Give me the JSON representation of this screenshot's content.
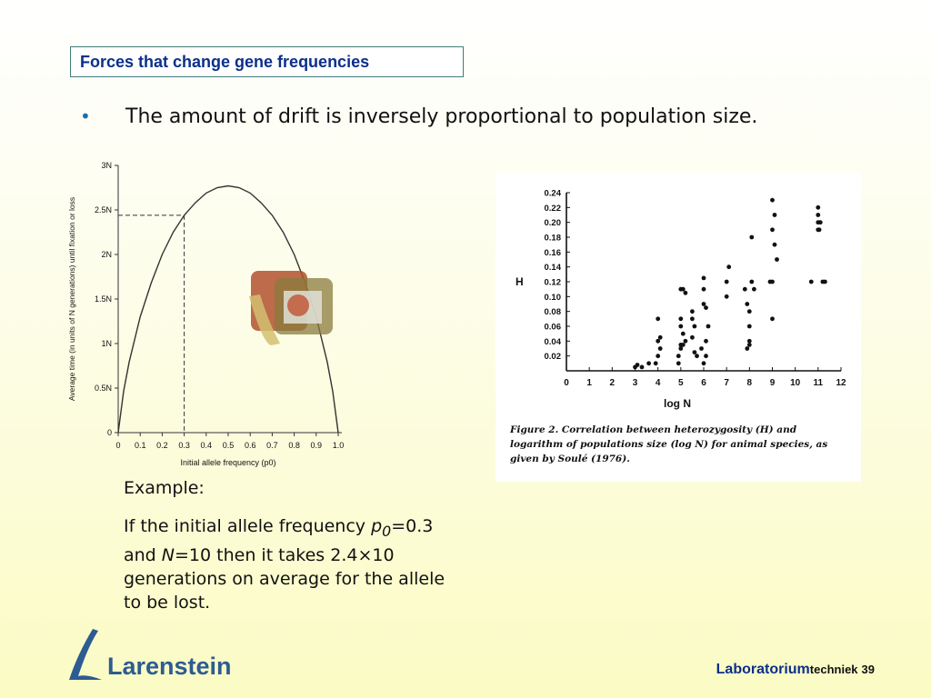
{
  "slide": {
    "title": "Forces that change gene frequencies",
    "bullet": "The amount of drift is inversely proportional to population size."
  },
  "example": {
    "label": "Example:",
    "line1_pre": "If the initial allele frequency ",
    "p_symbol": "p",
    "p_sub": "0",
    "line1_post": "=0.3",
    "line2_pre": "and ",
    "n_symbol": "N",
    "line2_post": "=10 then it takes 2.4×10",
    "line3": "generations on average for the allele",
    "line4": "to be lost."
  },
  "footer": {
    "logo_text": "Larenstein",
    "lab_big": "Laboratorium",
    "lab_small": "techniek",
    "page_number": "39"
  },
  "chart_data": [
    {
      "type": "line",
      "ylabel": "Average time (in units of N generations) until fixation or loss",
      "xlabel": "Initial allele frequency (p0)",
      "x_ticks": [
        "0",
        "0.1",
        "0.2",
        "0.3",
        "0.4",
        "0.5",
        "0.6",
        "0.7",
        "0.8",
        "0.9",
        "1.0"
      ],
      "y_ticks": [
        "0",
        "0.5N",
        "1N",
        "1.5N",
        "2N",
        "2.5N",
        "3N"
      ],
      "xlim": [
        0,
        1
      ],
      "ylim": [
        0,
        3
      ],
      "x": [
        0,
        0.025,
        0.05,
        0.1,
        0.15,
        0.2,
        0.25,
        0.3,
        0.35,
        0.4,
        0.45,
        0.5,
        0.55,
        0.6,
        0.65,
        0.7,
        0.75,
        0.8,
        0.85,
        0.9,
        0.95,
        0.975,
        1
      ],
      "y": [
        0,
        0.467,
        0.794,
        1.3,
        1.68,
        2.0,
        2.25,
        2.44,
        2.58,
        2.69,
        2.75,
        2.77,
        2.75,
        2.69,
        2.58,
        2.44,
        2.25,
        2.0,
        1.68,
        1.3,
        0.794,
        0.467,
        0
      ],
      "reference": {
        "x": 0.3,
        "y": 2.44
      }
    },
    {
      "type": "scatter",
      "ylabel": "H",
      "xlabel": "log N",
      "caption": "Figure 2. Correlation between heterozygosity (H) and logarithm of populations size (log N) for animal species, as given by Soulé (1976).",
      "x_ticks": [
        "0",
        "1",
        "2",
        "3",
        "4",
        "5",
        "6",
        "7",
        "8",
        "9",
        "10",
        "11",
        "12"
      ],
      "y_ticks": [
        "0.02",
        "0.04",
        "0.06",
        "0.08",
        "0.10",
        "0.12",
        "0.14",
        "0.16",
        "0.18",
        "0.20",
        "0.22",
        "0.24"
      ],
      "xlim": [
        0,
        12
      ],
      "ylim": [
        0,
        0.24
      ],
      "x": [
        3,
        3.1,
        3.3,
        3.6,
        3.9,
        4,
        4,
        4.1,
        4,
        4.1,
        4.9,
        5,
        5.1,
        5,
        4.9,
        5,
        5.2,
        5,
        5.1,
        5.2,
        5,
        5.1,
        5.5,
        5.6,
        5.5,
        5.6,
        5.7,
        5.5,
        5.9,
        6,
        6.1,
        6,
        6.2,
        6,
        6.1,
        6,
        6.1,
        7,
        7,
        7.1,
        7.8,
        7.9,
        8,
        8.1,
        8,
        8,
        7.9,
        8.1,
        8,
        8.2,
        8.9,
        9,
        9.1,
        9,
        9.1,
        9,
        9.2,
        9,
        10.7,
        11,
        11.2,
        11,
        11,
        11.1,
        11,
        11.05,
        11.3
      ],
      "y": [
        0.005,
        0.008,
        0.005,
        0.01,
        0.01,
        0.02,
        0.04,
        0.045,
        0.07,
        0.03,
        0.01,
        0.03,
        0.05,
        0.06,
        0.02,
        0.035,
        0.04,
        0.11,
        0.11,
        0.105,
        0.07,
        0.035,
        0.045,
        0.025,
        0.07,
        0.06,
        0.02,
        0.08,
        0.03,
        0.09,
        0.085,
        0.11,
        0.06,
        0.125,
        0.04,
        0.01,
        0.02,
        0.12,
        0.1,
        0.14,
        0.11,
        0.09,
        0.08,
        0.12,
        0.04,
        0.035,
        0.03,
        0.18,
        0.06,
        0.11,
        0.12,
        0.12,
        0.21,
        0.23,
        0.17,
        0.19,
        0.15,
        0.07,
        0.12,
        0.22,
        0.12,
        0.19,
        0.2,
        0.2,
        0.21,
        0.19,
        0.12
      ]
    }
  ]
}
